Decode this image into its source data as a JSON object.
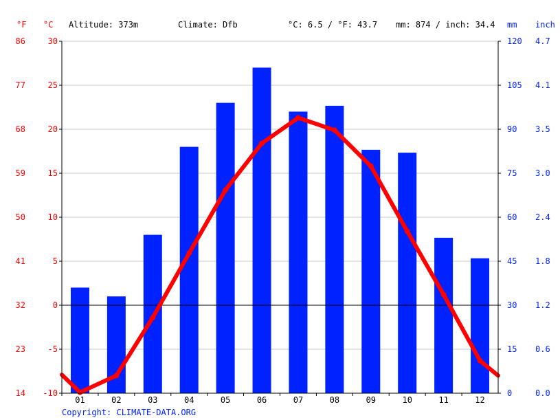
{
  "header": {
    "unit_f": "°F",
    "unit_c": "°C",
    "altitude": "Altitude: 373m",
    "climate": "Climate: Dfb",
    "temp_avg": "°C: 6.5 / °F: 43.7",
    "precip_total": "mm: 874 / inch: 34.4",
    "unit_mm": "mm",
    "unit_inch": "inch"
  },
  "copyright": "Copyright: CLIMATE-DATA.ORG",
  "colors": {
    "temperature": "#ff0000",
    "precipitation": "#0022ff",
    "grid": "#c8c8c8",
    "zero_line": "#000000"
  },
  "chart_data": {
    "type": "bar+line",
    "categories": [
      "01",
      "02",
      "03",
      "04",
      "05",
      "06",
      "07",
      "08",
      "09",
      "10",
      "11",
      "12"
    ],
    "series": [
      {
        "type": "bar",
        "axis": "right",
        "values": [
          36,
          33,
          54,
          84,
          99,
          111,
          96,
          98,
          83,
          82,
          53,
          46
        ]
      },
      {
        "type": "line",
        "axis": "left",
        "values": [
          -9.9,
          -8.0,
          -1.4,
          5.9,
          13.1,
          18.4,
          21.3,
          19.9,
          15.8,
          8.4,
          1.2,
          -6.3
        ],
        "extend_start": -7.9,
        "extend_end": -8.0
      }
    ],
    "axes": {
      "left_c": {
        "ticks": [
          30,
          25,
          20,
          15,
          10,
          5,
          0,
          -5,
          -10
        ],
        "range": [
          -10,
          30
        ]
      },
      "left_f": {
        "ticks": [
          86,
          77,
          68,
          59,
          50,
          41,
          32,
          23,
          14
        ]
      },
      "right_mm": {
        "ticks": [
          120,
          105,
          90,
          75,
          60,
          45,
          30,
          15,
          0
        ],
        "range": [
          0,
          120
        ]
      },
      "right_inch": {
        "ticks": [
          "4.7",
          "4.1",
          "3.5",
          "3.0",
          "2.4",
          "1.8",
          "1.2",
          "0.6",
          "0.0"
        ]
      }
    },
    "grid": true
  }
}
